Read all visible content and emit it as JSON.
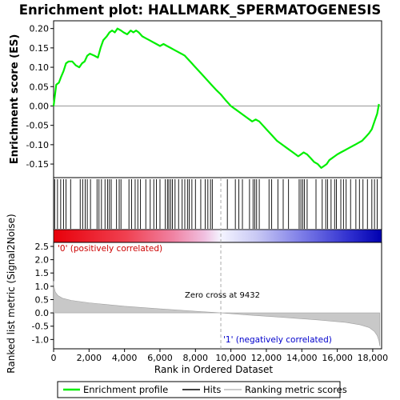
{
  "chart_data": {
    "type": "line",
    "title": "Enrichment plot: HALLMARK_SPERMATOGENESIS",
    "top_panel": {
      "ylabel": "Enrichment score (ES)",
      "ylim": [
        -0.185,
        0.22
      ],
      "yticks": [
        0.2,
        0.15,
        0.1,
        0.05,
        0.0,
        -0.05,
        -0.1,
        -0.15
      ],
      "ytick_labels": [
        "0.20",
        "0.15",
        "0.10",
        "0.05",
        "0.00",
        "-0.05",
        "-0.10",
        "-0.15"
      ],
      "series": [
        {
          "name": "Enrichment profile",
          "color": "#00ee00",
          "x": [
            0,
            80,
            150,
            300,
            420,
            560,
            700,
            850,
            1050,
            1250,
            1450,
            1600,
            1750,
            1900,
            2050,
            2300,
            2500,
            2650,
            2800,
            3000,
            3150,
            3300,
            3450,
            3600,
            3800,
            3950,
            4150,
            4350,
            4500,
            4650,
            4800,
            5000,
            5200,
            5400,
            5600,
            5800,
            6000,
            6200,
            6400,
            6600,
            6800,
            7000,
            7200,
            7400,
            7600,
            7800,
            8000,
            8300,
            8600,
            8900,
            9200,
            9432,
            9700,
            10000,
            10300,
            10600,
            10900,
            11200,
            11400,
            11600,
            11800,
            12000,
            12300,
            12600,
            12900,
            13200,
            13500,
            13800,
            13950,
            14100,
            14300,
            14500,
            14700,
            14900,
            15100,
            15250,
            15400,
            15550,
            15700,
            15850,
            16000,
            16200,
            16400,
            16600,
            16800,
            17000,
            17200,
            17400,
            17600,
            17800,
            17950,
            18100,
            18250,
            18350
          ],
          "y": [
            0.0,
            0.03,
            0.055,
            0.06,
            0.075,
            0.09,
            0.11,
            0.115,
            0.115,
            0.105,
            0.1,
            0.11,
            0.115,
            0.13,
            0.135,
            0.13,
            0.125,
            0.15,
            0.17,
            0.18,
            0.19,
            0.195,
            0.19,
            0.2,
            0.195,
            0.19,
            0.185,
            0.195,
            0.19,
            0.195,
            0.19,
            0.18,
            0.175,
            0.17,
            0.165,
            0.16,
            0.155,
            0.16,
            0.155,
            0.15,
            0.145,
            0.14,
            0.135,
            0.13,
            0.12,
            0.11,
            0.1,
            0.085,
            0.07,
            0.055,
            0.04,
            0.03,
            0.015,
            0.0,
            -0.01,
            -0.02,
            -0.03,
            -0.04,
            -0.035,
            -0.04,
            -0.05,
            -0.06,
            -0.075,
            -0.09,
            -0.1,
            -0.11,
            -0.12,
            -0.13,
            -0.125,
            -0.12,
            -0.125,
            -0.135,
            -0.145,
            -0.15,
            -0.16,
            -0.155,
            -0.15,
            -0.14,
            -0.135,
            -0.13,
            -0.125,
            -0.12,
            -0.115,
            -0.11,
            -0.105,
            -0.1,
            -0.095,
            -0.09,
            -0.08,
            -0.07,
            -0.06,
            -0.04,
            -0.02,
            0.005
          ]
        }
      ]
    },
    "hits_panel": {
      "hit_positions": [
        60,
        220,
        400,
        560,
        700,
        960,
        1500,
        1640,
        1780,
        1900,
        2080,
        2450,
        2560,
        2700,
        2900,
        3050,
        3150,
        3250,
        3550,
        3700,
        3800,
        4250,
        4400,
        4600,
        4750,
        4900,
        5200,
        5450,
        5650,
        5800,
        6000,
        6300,
        6420,
        6500,
        6600,
        6700,
        6850,
        7050,
        7250,
        7400,
        7550,
        7650,
        7800,
        8000,
        8300,
        8550,
        8700,
        8850,
        8950,
        9800,
        10250,
        10450,
        10650,
        11050,
        11250,
        11350,
        11450,
        11600,
        12150,
        12300,
        12650,
        12950,
        13250,
        13850,
        13950,
        14050,
        14150,
        14300,
        14800,
        15150,
        15350,
        15450,
        15650,
        15850,
        15950,
        16200,
        16350,
        16500,
        16750,
        17050,
        17250,
        17450,
        17700,
        17950,
        18100,
        18250
      ]
    },
    "metric_panel": {
      "ylabel": "Ranked list metric (Signal2Noise)",
      "xlabel": "Rank in Ordered Dataset",
      "ylim": [
        -1.35,
        2.65
      ],
      "yticks": [
        2.5,
        2.0,
        1.5,
        1.0,
        0.5,
        0.0,
        -0.5,
        -1.0
      ],
      "ytick_labels": [
        "2.5",
        "2.0",
        "1.5",
        "1.0",
        "0.5",
        "0.0",
        "-0.5",
        "-1.0"
      ],
      "x": [
        0,
        30,
        100,
        250,
        500,
        1000,
        2000,
        4000,
        6000,
        8000,
        9432,
        11000,
        13000,
        15000,
        16500,
        17300,
        17800,
        18100,
        18250,
        18350,
        18400
      ],
      "y": [
        1.2,
        0.95,
        0.78,
        0.65,
        0.55,
        0.47,
        0.38,
        0.25,
        0.15,
        0.06,
        0.0,
        -0.08,
        -0.17,
        -0.27,
        -0.36,
        -0.45,
        -0.55,
        -0.7,
        -0.85,
        -1.05,
        -1.25
      ],
      "zero_cross_label": "Zero cross at 9432",
      "zero_cross": 9432,
      "pos_label": "'0' (positively correlated)",
      "neg_label": "'1' (negatively correlated)"
    },
    "xlim": [
      0,
      18500
    ],
    "xticks": [
      0,
      2000,
      4000,
      6000,
      8000,
      10000,
      12000,
      14000,
      16000,
      18000
    ],
    "xtick_labels": [
      "0",
      "2,000",
      "4,000",
      "6,000",
      "8,000",
      "10,000",
      "12,000",
      "14,000",
      "16,000",
      "18,000"
    ],
    "legend": {
      "placement": "bottom",
      "items": [
        {
          "name": "Enrichment profile",
          "color": "#00ee00"
        },
        {
          "name": "Hits",
          "color": "#000000"
        },
        {
          "name": "Ranking metric scores",
          "color": "#bbbbbb"
        }
      ]
    }
  },
  "colors": {
    "profile": "#00ee00",
    "metric_fill": "#c8c8c8",
    "pos_label": "#cc0000",
    "neg_label": "#0000cc"
  }
}
